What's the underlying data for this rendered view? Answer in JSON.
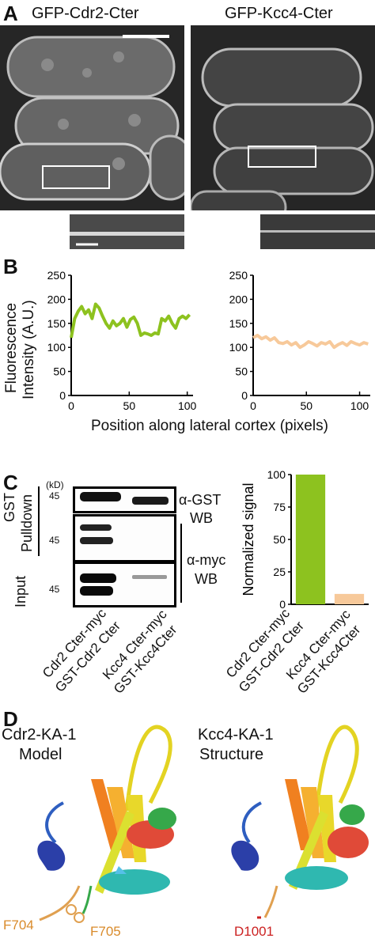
{
  "panels": {
    "A": {
      "letter": "A",
      "left_title": "GFP-Cdr2-Cter",
      "right_title": "GFP-Kcc4-Cter"
    },
    "B": {
      "letter": "B",
      "ylabel_line1": "Fluorescence",
      "ylabel_line2": "Intensity (A.U.)",
      "xlabel": "Position along lateral cortex (pixels)"
    },
    "C": {
      "letter": "C",
      "kd_label": "(kD)",
      "marker_top": "45",
      "marker_mid": "45",
      "marker_bot": "45",
      "gst_label": "GST",
      "pulldown_label": "Pulldown",
      "input_label": "Input",
      "agst_label": "α-GST",
      "wb_label1": "WB",
      "amyc_label": "α-myc",
      "wb_label2": "WB",
      "lane1_line1": "Cdr2 Cter-myc",
      "lane1_line2": "GST-Cdr2 Cter",
      "lane2_line1": "Kcc4 Cter-myc",
      "lane2_line2": "GST-Kcc4Cter"
    },
    "D": {
      "letter": "D",
      "left_title1": "Cdr2-KA-1",
      "left_title2": "Model",
      "right_title1": "Kcc4-KA-1",
      "right_title2": "Structure",
      "label_f704": "F704",
      "label_f705": "F705",
      "label_d1001": "D1001"
    }
  },
  "colors": {
    "green": "#8dc21f",
    "peach": "#f7c99a",
    "orange_label": "#d98b2b",
    "red_label": "#cc2222"
  },
  "chart_data": [
    {
      "type": "line",
      "series": [
        {
          "color": "#8dc21f",
          "x": [
            0,
            3,
            6,
            9,
            12,
            15,
            18,
            21,
            24,
            27,
            30,
            33,
            36,
            39,
            42,
            45,
            48,
            51,
            54,
            57,
            60,
            63,
            66,
            69,
            72,
            75,
            78,
            81,
            84,
            87,
            90,
            93,
            96,
            99,
            102
          ],
          "y": [
            120,
            160,
            175,
            185,
            170,
            178,
            160,
            190,
            182,
            165,
            150,
            140,
            155,
            145,
            150,
            160,
            142,
            158,
            163,
            150,
            125,
            130,
            128,
            125,
            130,
            128,
            160,
            155,
            165,
            150,
            140,
            160,
            165,
            160,
            168
          ]
        }
      ],
      "xlim": [
        0,
        105
      ],
      "ylim": [
        0,
        250
      ],
      "xticks": [
        "0",
        "50",
        "100"
      ],
      "yticks": [
        "0",
        "50",
        "100",
        "150",
        "200",
        "250"
      ]
    },
    {
      "type": "line",
      "series": [
        {
          "color": "#f7c99a",
          "x": [
            0,
            4,
            8,
            12,
            16,
            20,
            24,
            28,
            32,
            36,
            40,
            44,
            48,
            52,
            56,
            60,
            64,
            68,
            72,
            76,
            80,
            84,
            88,
            92,
            96,
            100,
            104,
            108
          ],
          "y": [
            120,
            125,
            118,
            122,
            115,
            120,
            110,
            108,
            112,
            105,
            110,
            100,
            105,
            112,
            108,
            103,
            110,
            107,
            112,
            100,
            106,
            110,
            104,
            112,
            108,
            105,
            110,
            107
          ]
        }
      ],
      "xlim": [
        0,
        110
      ],
      "ylim": [
        0,
        250
      ],
      "xticks": [
        "0",
        "50",
        "100"
      ],
      "yticks": [
        "0",
        "50",
        "100",
        "150",
        "200",
        "250"
      ]
    },
    {
      "type": "bar",
      "ylabel": "Normalized signal",
      "values": [
        100,
        8
      ],
      "colors": [
        "#8dc21f",
        "#f7c99a"
      ],
      "ylim": [
        0,
        100
      ],
      "yticks": [
        "0",
        "25",
        "50",
        "75",
        "100"
      ]
    }
  ]
}
